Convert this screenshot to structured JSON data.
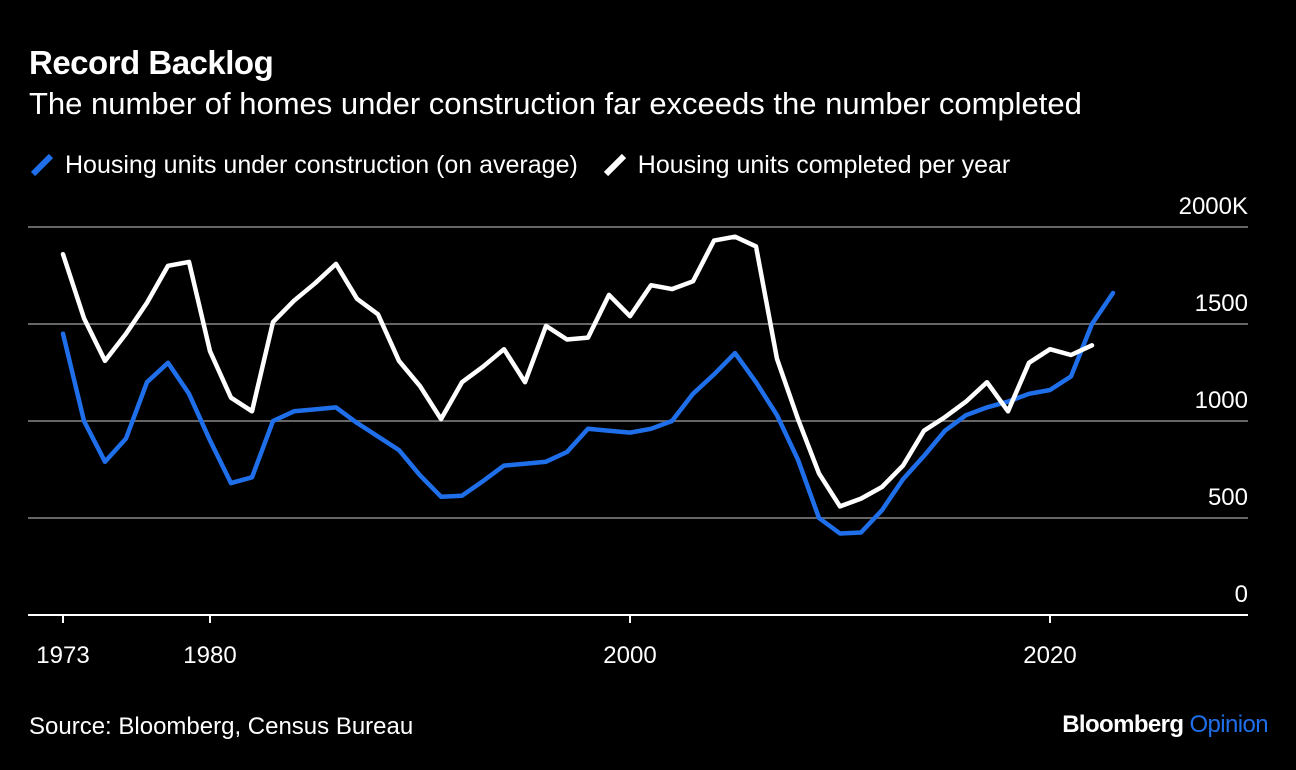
{
  "colors": {
    "background": "#000000",
    "text": "#ffffff",
    "grid": "#666666",
    "axis": "#ffffff",
    "under_construction": "#1f6feb",
    "completed": "#ffffff",
    "brand_accent": "#1f6feb"
  },
  "brand": {
    "name": "Bloomberg",
    "section": "Opinion"
  },
  "chart_data": {
    "type": "line",
    "title": "Record Backlog",
    "subtitle": "The number of homes under construction far exceeds the number completed",
    "source": "Source: Bloomberg, Census Bureau",
    "legend_position": "top-left",
    "grid": true,
    "xlim": [
      1973,
      2032
    ],
    "ylim": [
      0,
      2000
    ],
    "x_ticks": [
      {
        "value": 1973,
        "label": "1973"
      },
      {
        "value": 1980,
        "label": "1980"
      },
      {
        "value": 2000,
        "label": "2000"
      },
      {
        "value": 2020,
        "label": "2020"
      }
    ],
    "y_ticks": [
      {
        "value": 0,
        "label": "0"
      },
      {
        "value": 500,
        "label": "500"
      },
      {
        "value": 1000,
        "label": "1000"
      },
      {
        "value": 1500,
        "label": "1500"
      },
      {
        "value": 2000,
        "label": "2000K"
      }
    ],
    "series": [
      {
        "name": "Housing units under construction (on average)",
        "color": "#1f6feb",
        "x": [
          1973,
          1974,
          1975,
          1976,
          1977,
          1978,
          1979,
          1980,
          1981,
          1982,
          1983,
          1984,
          1985,
          1986,
          1987,
          1988,
          1989,
          1990,
          1991,
          1992,
          1993,
          1994,
          1995,
          1996,
          1997,
          1998,
          1999,
          2000,
          2001,
          2002,
          2003,
          2004,
          2005,
          2006,
          2007,
          2008,
          2009,
          2010,
          2011,
          2012,
          2013,
          2014,
          2015,
          2016,
          2017,
          2018,
          2019,
          2020,
          2021,
          2022,
          2023
        ],
        "y": [
          1450,
          1000,
          790,
          910,
          1200,
          1300,
          1140,
          900,
          680,
          710,
          1000,
          1050,
          1060,
          1070,
          990,
          920,
          850,
          720,
          610,
          615,
          690,
          770,
          780,
          790,
          840,
          960,
          950,
          940,
          960,
          1000,
          1140,
          1240,
          1350,
          1200,
          1030,
          800,
          500,
          420,
          425,
          540,
          700,
          820,
          950,
          1030,
          1070,
          1100,
          1140,
          1160,
          1230,
          1500,
          1660
        ]
      },
      {
        "name": "Housing units completed per year",
        "color": "#ffffff",
        "x": [
          1973,
          1974,
          1975,
          1976,
          1977,
          1978,
          1979,
          1980,
          1981,
          1982,
          1983,
          1984,
          1985,
          1986,
          1987,
          1988,
          1989,
          1990,
          1991,
          1992,
          1993,
          1994,
          1995,
          1996,
          1997,
          1998,
          1999,
          2000,
          2001,
          2002,
          2003,
          2004,
          2005,
          2006,
          2007,
          2008,
          2009,
          2010,
          2011,
          2012,
          2013,
          2014,
          2015,
          2016,
          2017,
          2018,
          2019,
          2020,
          2021,
          2022,
          2023
        ],
        "y": [
          1860,
          1530,
          1310,
          1450,
          1610,
          1800,
          1820,
          1360,
          1120,
          1050,
          1510,
          1620,
          1710,
          1810,
          1630,
          1550,
          1310,
          1180,
          1010,
          1200,
          1280,
          1370,
          1200,
          1490,
          1420,
          1430,
          1650,
          1540,
          1700,
          1680,
          1720,
          1930,
          1950,
          1900,
          1320,
          1010,
          730,
          560,
          600,
          660,
          770,
          950,
          1020,
          1100,
          1200,
          1050,
          1300,
          1370,
          1340,
          1390,
          null
        ]
      }
    ]
  }
}
